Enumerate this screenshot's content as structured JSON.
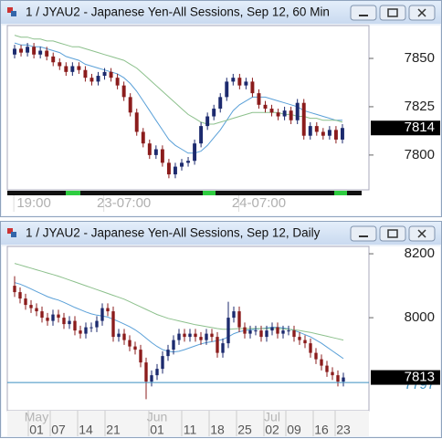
{
  "chart_data": [
    {
      "type": "candlestick",
      "title": "1 / JYAU2 - Japanese Yen-All Sessions, Sep 12, 60 Min",
      "up_color": "#1c2a6e",
      "down_color": "#8b1c1c",
      "ylim": [
        7782,
        7867
      ],
      "yticks": [
        7800,
        7825,
        7850
      ],
      "last_price": 7814,
      "categories": [
        null,
        null,
        null,
        "19:00",
        null,
        null,
        null,
        null,
        null,
        null,
        null,
        null,
        null,
        null,
        null,
        null,
        null,
        "23-07:00",
        null,
        null,
        null,
        null,
        null,
        null,
        null,
        null,
        null,
        null,
        null,
        null,
        null,
        null,
        null,
        null,
        null,
        null,
        null,
        null,
        "24-07:00",
        null,
        null,
        null,
        null,
        null,
        null,
        null,
        null,
        null,
        null,
        null,
        null,
        null
      ],
      "open": [
        7852,
        7855,
        7853,
        7856,
        7852,
        7854,
        7851,
        7848,
        7846,
        7843,
        7846,
        7844,
        7840,
        7838,
        7841,
        7843,
        7840,
        7836,
        7830,
        7822,
        7812,
        7806,
        7800,
        7803,
        7796,
        7790,
        7794,
        7796,
        7797,
        7806,
        7815,
        7820,
        7824,
        7830,
        7838,
        7840,
        7836,
        7838,
        7832,
        7826,
        7824,
        7822,
        7820,
        7823,
        7818,
        7827,
        7810,
        7815,
        7812,
        7810,
        7813,
        7808
      ],
      "high": [
        7857,
        7857,
        7858,
        7858,
        7856,
        7856,
        7853,
        7850,
        7848,
        7848,
        7848,
        7846,
        7842,
        7843,
        7845,
        7845,
        7842,
        7838,
        7832,
        7824,
        7814,
        7808,
        7805,
        7805,
        7798,
        7796,
        7798,
        7799,
        7808,
        7817,
        7822,
        7826,
        7832,
        7840,
        7842,
        7842,
        7840,
        7840,
        7834,
        7828,
        7826,
        7824,
        7825,
        7825,
        7829,
        7829,
        7817,
        7817,
        7814,
        7815,
        7815,
        7816
      ],
      "low": [
        7850,
        7851,
        7851,
        7850,
        7850,
        7849,
        7846,
        7844,
        7841,
        7841,
        7842,
        7838,
        7836,
        7836,
        7839,
        7838,
        7834,
        7828,
        7820,
        7810,
        7804,
        7798,
        7798,
        7794,
        7788,
        7788,
        7792,
        7794,
        7795,
        7804,
        7813,
        7818,
        7822,
        7828,
        7836,
        7834,
        7834,
        7830,
        7824,
        7822,
        7820,
        7818,
        7818,
        7816,
        7816,
        7808,
        7808,
        7810,
        7808,
        7808,
        7806,
        7806
      ],
      "close": [
        7855,
        7853,
        7856,
        7852,
        7854,
        7851,
        7848,
        7846,
        7843,
        7846,
        7844,
        7840,
        7838,
        7841,
        7843,
        7840,
        7836,
        7830,
        7822,
        7812,
        7806,
        7800,
        7803,
        7796,
        7790,
        7794,
        7796,
        7797,
        7806,
        7815,
        7820,
        7824,
        7830,
        7838,
        7840,
        7836,
        7838,
        7832,
        7826,
        7824,
        7822,
        7820,
        7823,
        7818,
        7827,
        7810,
        7815,
        7812,
        7810,
        7813,
        7808,
        7814
      ],
      "ma_series": [
        {
          "color": "#5aa0d8",
          "values": [
            7858,
            7857,
            7857,
            7856,
            7856,
            7855,
            7854,
            7853,
            7851,
            7850,
            7849,
            7847,
            7846,
            7845,
            7844,
            7843,
            7842,
            7840,
            7837,
            7833,
            7828,
            7823,
            7818,
            7813,
            7808,
            7805,
            7803,
            7801,
            7801,
            7802,
            7805,
            7809,
            7813,
            7818,
            7823,
            7826,
            7828,
            7830,
            7830,
            7830,
            7829,
            7828,
            7827,
            7826,
            7825,
            7823,
            7822,
            7821,
            7820,
            7819,
            7818,
            7818
          ]
        },
        {
          "color": "#8cc08c",
          "values": [
            7862,
            7861,
            7861,
            7860,
            7860,
            7859,
            7859,
            7858,
            7857,
            7856,
            7856,
            7855,
            7854,
            7853,
            7852,
            7851,
            7850,
            7849,
            7847,
            7845,
            7842,
            7839,
            7836,
            7833,
            7830,
            7827,
            7824,
            7821,
            7819,
            7817,
            7816,
            7816,
            7817,
            7818,
            7819,
            7820,
            7821,
            7822,
            7822,
            7822,
            7822,
            7822,
            7821,
            7821,
            7820,
            7820,
            7819,
            7819,
            7818,
            7818,
            7818,
            7817
          ]
        }
      ]
    },
    {
      "type": "candlestick",
      "title": "1 / JYAU2 - Japanese Yen-All Sessions, Sep 12, Daily",
      "up_color": "#1c2a6e",
      "down_color": "#8b1c1c",
      "ylim": [
        7709,
        8223
      ],
      "yticks": [
        8000,
        8200
      ],
      "last_price": 7813,
      "hline": 7797,
      "hline_color": "#3a8fc0",
      "months": [
        null,
        null,
        null,
        null,
        "May",
        null,
        null,
        null,
        null,
        null,
        null,
        null,
        null,
        null,
        null,
        null,
        null,
        null,
        null,
        null,
        null,
        null,
        null,
        null,
        null,
        null,
        "Jun",
        null,
        null,
        null,
        null,
        null,
        null,
        null,
        null,
        null,
        null,
        null,
        null,
        null,
        null,
        null,
        null,
        null,
        null,
        null,
        null,
        "Jul",
        null,
        null,
        null,
        null,
        null,
        null,
        null,
        null,
        null,
        null,
        null,
        null,
        null
      ],
      "categories": [
        null,
        null,
        null,
        null,
        "01",
        null,
        null,
        null,
        "07",
        null,
        null,
        null,
        null,
        "14",
        null,
        null,
        null,
        null,
        "21",
        null,
        null,
        null,
        null,
        null,
        null,
        null,
        "01",
        null,
        null,
        null,
        null,
        null,
        "11",
        null,
        null,
        null,
        null,
        "18",
        null,
        null,
        null,
        null,
        "25",
        null,
        null,
        null,
        null,
        "02",
        null,
        null,
        null,
        "09",
        null,
        null,
        null,
        null,
        "16",
        null,
        null,
        null,
        "23"
      ],
      "open": [
        8100,
        8080,
        8060,
        8040,
        8030,
        8020,
        8000,
        7990,
        8010,
        8000,
        7980,
        7990,
        7960,
        7950,
        7970,
        7970,
        7990,
        8030,
        8020,
        7940,
        7950,
        7930,
        7910,
        7900,
        7860,
        7800,
        7820,
        7840,
        7880,
        7900,
        7930,
        7950,
        7940,
        7950,
        7940,
        7930,
        7950,
        7940,
        7890,
        7920,
        8000,
        8020,
        7970,
        7950,
        7960,
        7960,
        7940,
        7960,
        7970,
        7950,
        7960,
        7960,
        7940,
        7930,
        7920,
        7890,
        7870,
        7850,
        7830,
        7820,
        7800
      ],
      "high": [
        8130,
        8095,
        8075,
        8055,
        8045,
        8035,
        8015,
        8025,
        8025,
        8015,
        8005,
        8005,
        7975,
        7985,
        7985,
        8005,
        8045,
        8045,
        8035,
        7965,
        7965,
        7945,
        7925,
        7915,
        7875,
        7835,
        7855,
        7895,
        7915,
        7945,
        7965,
        7965,
        7965,
        7965,
        7955,
        7965,
        7965,
        7955,
        7935,
        8050,
        8035,
        8035,
        7985,
        7975,
        7975,
        7975,
        7975,
        7985,
        7985,
        7975,
        7975,
        7975,
        7955,
        7945,
        7935,
        7905,
        7885,
        7865,
        7845,
        7835,
        7828
      ],
      "low": [
        8065,
        8045,
        8025,
        8015,
        8005,
        7985,
        7975,
        7975,
        7985,
        7965,
        7965,
        7945,
        7935,
        7935,
        7955,
        7955,
        7975,
        8005,
        7925,
        7925,
        7915,
        7895,
        7885,
        7845,
        7745,
        7785,
        7805,
        7825,
        7865,
        7885,
        7915,
        7925,
        7925,
        7925,
        7915,
        7915,
        7925,
        7875,
        7875,
        7905,
        7985,
        7955,
        7935,
        7935,
        7945,
        7925,
        7925,
        7945,
        7935,
        7935,
        7945,
        7925,
        7915,
        7905,
        7875,
        7855,
        7835,
        7815,
        7805,
        7785,
        7785
      ],
      "close": [
        8080,
        8060,
        8040,
        8030,
        8020,
        8000,
        7990,
        8010,
        8000,
        7980,
        7990,
        7960,
        7950,
        7970,
        7970,
        7990,
        8030,
        8020,
        7940,
        7950,
        7930,
        7910,
        7900,
        7860,
        7800,
        7820,
        7840,
        7880,
        7900,
        7930,
        7950,
        7940,
        7950,
        7940,
        7930,
        7950,
        7940,
        7890,
        7920,
        8000,
        8020,
        7970,
        7950,
        7960,
        7960,
        7940,
        7960,
        7970,
        7950,
        7960,
        7960,
        7940,
        7930,
        7920,
        7890,
        7870,
        7850,
        7830,
        7820,
        7800,
        7813
      ],
      "ma_series": [
        {
          "color": "#5aa0d8",
          "values": [
            8110,
            8105,
            8098,
            8090,
            8082,
            8074,
            8066,
            8060,
            8055,
            8048,
            8040,
            8032,
            8025,
            8018,
            8012,
            8008,
            8005,
            8002,
            7995,
            7988,
            7980,
            7972,
            7962,
            7950,
            7936,
            7922,
            7910,
            7900,
            7895,
            7893,
            7895,
            7900,
            7906,
            7912,
            7918,
            7922,
            7925,
            7928,
            7932,
            7940,
            7950,
            7956,
            7960,
            7962,
            7964,
            7966,
            7968,
            7970,
            7970,
            7968,
            7965,
            7960,
            7954,
            7947,
            7940,
            7930,
            7920,
            7908,
            7896,
            7884,
            7872
          ]
        },
        {
          "color": "#8cc08c",
          "values": [
            8170,
            8165,
            8160,
            8155,
            8150,
            8145,
            8140,
            8135,
            8130,
            8124,
            8118,
            8112,
            8106,
            8100,
            8094,
            8088,
            8082,
            8076,
            8070,
            8064,
            8058,
            8050,
            8042,
            8034,
            8026,
            8018,
            8010,
            8004,
            7998,
            7994,
            7990,
            7986,
            7982,
            7978,
            7975,
            7972,
            7969,
            7966,
            7964,
            7964,
            7965,
            7966,
            7966,
            7966,
            7966,
            7966,
            7966,
            7966,
            7966,
            7965,
            7964,
            7962,
            7960,
            7957,
            7954,
            7950,
            7946,
            7942,
            7938,
            7934,
            7930
          ]
        }
      ]
    }
  ]
}
